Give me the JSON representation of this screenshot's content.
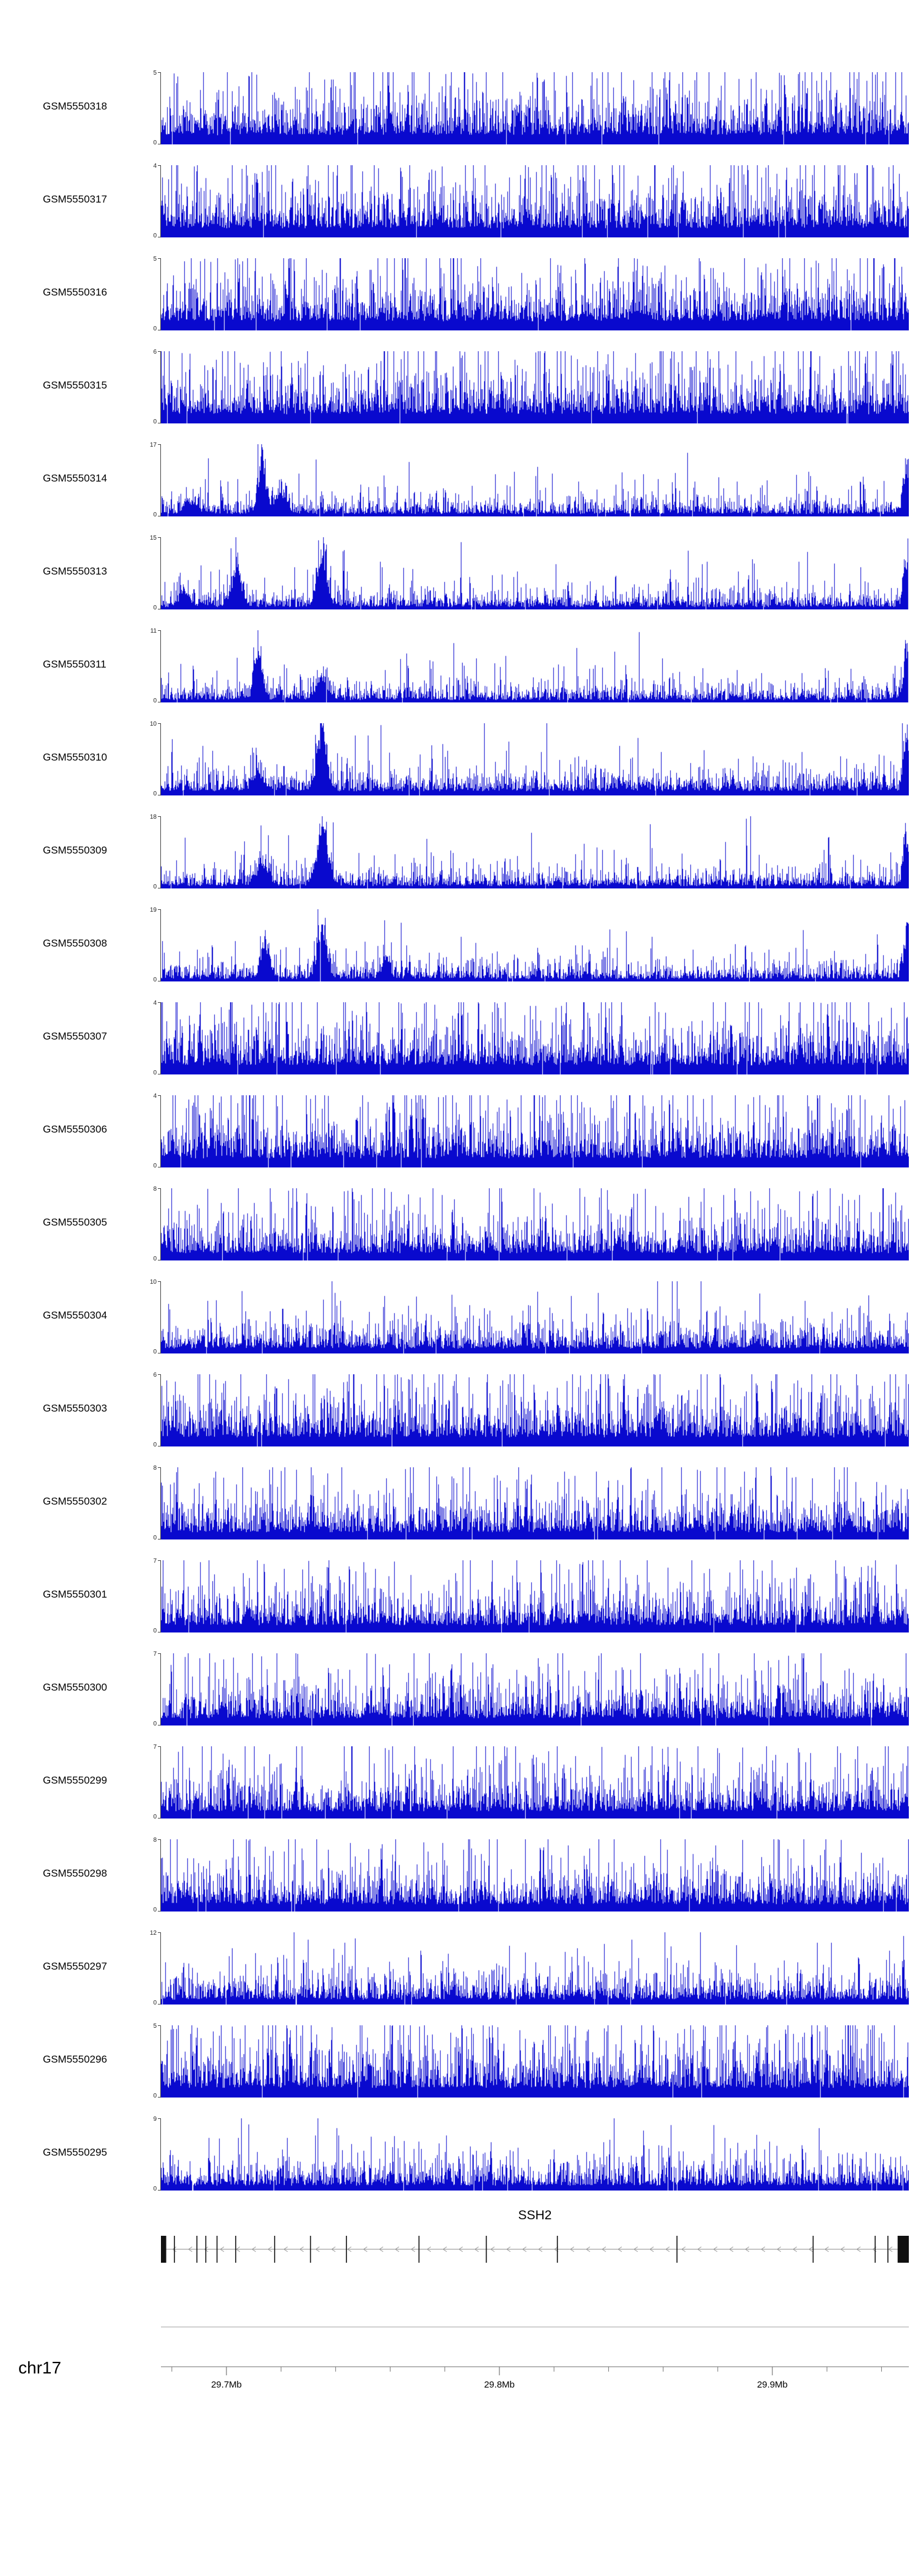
{
  "styles": {
    "bar_color": "#0909CE",
    "gene_line_color": "#8a8a8a",
    "chevron_color": "#999999",
    "exon_color": "#111111",
    "separator_color": "#b5b5b5",
    "axis_color": "#8a8a8a",
    "tick_color": "#777777",
    "text_color": "#000000"
  },
  "chart_data": {
    "type": "bar",
    "variant": "genome-coverage-tracks",
    "region": {
      "chromosome": "chr17",
      "start_mb": 29.676,
      "end_mb": 29.95,
      "minor_tick_step_mb": 0.02,
      "axis_ticks": [
        {
          "mb": 29.7,
          "label": "29.7Mb"
        },
        {
          "mb": 29.8,
          "label": "29.8Mb"
        },
        {
          "mb": 29.9,
          "label": "29.9Mb"
        }
      ]
    },
    "tracks": [
      {
        "name": "GSM5550318",
        "ymin": 0,
        "ymax": 5,
        "seed": 101,
        "noise_base": 0.13,
        "noise_scale": 0.27
      },
      {
        "name": "GSM5550317",
        "ymin": 0,
        "ymax": 4,
        "seed": 102,
        "noise_base": 0.13,
        "noise_scale": 0.27
      },
      {
        "name": "GSM5550316",
        "ymin": 0,
        "ymax": 5,
        "seed": 103,
        "noise_base": 0.13,
        "noise_scale": 0.27
      },
      {
        "name": "GSM5550315",
        "ymin": 0,
        "ymax": 6,
        "seed": 104,
        "noise_base": 0.13,
        "noise_scale": 0.27
      },
      {
        "name": "GSM5550314",
        "ymin": 0,
        "ymax": 17,
        "seed": 105,
        "noise_base": 0.035,
        "noise_scale": 0.1,
        "peaks": [
          {
            "pos": 0.135,
            "h": 0.92,
            "w": 0.005
          },
          {
            "pos": 0.16,
            "h": 0.3,
            "w": 0.008
          },
          {
            "pos": 0.04,
            "h": 0.18,
            "w": 0.008
          },
          {
            "pos": 0.997,
            "h": 0.85,
            "w": 0.004
          }
        ]
      },
      {
        "name": "GSM5550313",
        "ymin": 0,
        "ymax": 15,
        "seed": 106,
        "noise_base": 0.035,
        "noise_scale": 0.1,
        "peaks": [
          {
            "pos": 0.1,
            "h": 0.55,
            "w": 0.007
          },
          {
            "pos": 0.215,
            "h": 0.95,
            "w": 0.006
          },
          {
            "pos": 0.03,
            "h": 0.25,
            "w": 0.006
          },
          {
            "pos": 0.997,
            "h": 0.8,
            "w": 0.004
          }
        ]
      },
      {
        "name": "GSM5550311",
        "ymin": 0,
        "ymax": 11,
        "seed": 107,
        "noise_base": 0.035,
        "noise_scale": 0.1,
        "peaks": [
          {
            "pos": 0.13,
            "h": 0.93,
            "w": 0.005
          },
          {
            "pos": 0.215,
            "h": 0.33,
            "w": 0.007
          },
          {
            "pos": 0.997,
            "h": 0.85,
            "w": 0.004
          }
        ]
      },
      {
        "name": "GSM5550310",
        "ymin": 0,
        "ymax": 10,
        "seed": 108,
        "noise_base": 0.06,
        "noise_scale": 0.13,
        "peaks": [
          {
            "pos": 0.215,
            "h": 0.9,
            "w": 0.006
          },
          {
            "pos": 0.13,
            "h": 0.28,
            "w": 0.007
          },
          {
            "pos": 0.997,
            "h": 0.9,
            "w": 0.004
          }
        ]
      },
      {
        "name": "GSM5550309",
        "ymin": 0,
        "ymax": 18,
        "seed": 109,
        "noise_base": 0.035,
        "noise_scale": 0.1,
        "peaks": [
          {
            "pos": 0.215,
            "h": 0.95,
            "w": 0.007
          },
          {
            "pos": 0.135,
            "h": 0.3,
            "w": 0.007
          },
          {
            "pos": 0.997,
            "h": 0.8,
            "w": 0.004
          }
        ]
      },
      {
        "name": "GSM5550308",
        "ymin": 0,
        "ymax": 19,
        "seed": 110,
        "noise_base": 0.035,
        "noise_scale": 0.1,
        "peaks": [
          {
            "pos": 0.14,
            "h": 0.55,
            "w": 0.006
          },
          {
            "pos": 0.215,
            "h": 0.95,
            "w": 0.006
          },
          {
            "pos": 0.3,
            "h": 0.33,
            "w": 0.005
          },
          {
            "pos": 0.997,
            "h": 0.75,
            "w": 0.004
          }
        ]
      },
      {
        "name": "GSM5550307",
        "ymin": 0,
        "ymax": 4,
        "seed": 111,
        "noise_base": 0.13,
        "noise_scale": 0.27
      },
      {
        "name": "GSM5550306",
        "ymin": 0,
        "ymax": 4,
        "seed": 112,
        "noise_base": 0.13,
        "noise_scale": 0.27
      },
      {
        "name": "GSM5550305",
        "ymin": 0,
        "ymax": 8,
        "seed": 113,
        "noise_base": 0.1,
        "noise_scale": 0.22
      },
      {
        "name": "GSM5550304",
        "ymin": 0,
        "ymax": 10,
        "seed": 114,
        "noise_base": 0.07,
        "noise_scale": 0.16
      },
      {
        "name": "GSM5550303",
        "ymin": 0,
        "ymax": 6,
        "seed": 115,
        "noise_base": 0.13,
        "noise_scale": 0.27
      },
      {
        "name": "GSM5550302",
        "ymin": 0,
        "ymax": 8,
        "seed": 116,
        "noise_base": 0.1,
        "noise_scale": 0.22
      },
      {
        "name": "GSM5550301",
        "ymin": 0,
        "ymax": 7,
        "seed": 117,
        "noise_base": 0.1,
        "noise_scale": 0.22
      },
      {
        "name": "GSM5550300",
        "ymin": 0,
        "ymax": 7,
        "seed": 118,
        "noise_base": 0.1,
        "noise_scale": 0.22
      },
      {
        "name": "GSM5550299",
        "ymin": 0,
        "ymax": 7,
        "seed": 119,
        "noise_base": 0.1,
        "noise_scale": 0.22
      },
      {
        "name": "GSM5550298",
        "ymin": 0,
        "ymax": 8,
        "seed": 120,
        "noise_base": 0.1,
        "noise_scale": 0.22
      },
      {
        "name": "GSM5550297",
        "ymin": 0,
        "ymax": 12,
        "seed": 121,
        "noise_base": 0.07,
        "noise_scale": 0.16
      },
      {
        "name": "GSM5550296",
        "ymin": 0,
        "ymax": 5,
        "seed": 122,
        "noise_base": 0.13,
        "noise_scale": 0.27
      },
      {
        "name": "GSM5550295",
        "ymin": 0,
        "ymax": 9,
        "seed": 123,
        "noise_base": 0.07,
        "noise_scale": 0.16
      }
    ],
    "gene_track": {
      "title": "SSH2",
      "strand": "-",
      "exons": [
        0.018,
        0.048,
        0.06,
        0.075,
        0.1,
        0.152,
        0.2,
        0.248,
        0.345,
        0.435,
        0.53,
        0.69,
        0.872,
        0.955,
        0.972
      ],
      "utr_blocks": [
        [
          0.0,
          0.007
        ],
        [
          0.985,
          1.0
        ]
      ]
    }
  }
}
